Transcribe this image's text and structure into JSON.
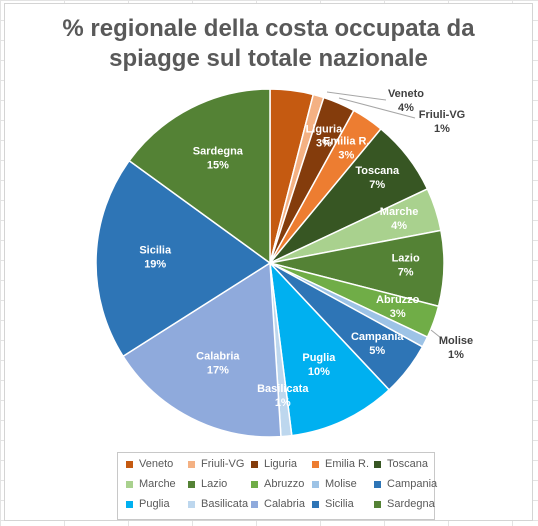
{
  "chart_data": {
    "type": "pie",
    "title_lines": [
      "% regionale della costa occupata da",
      "spiagge sul totale nazionale"
    ],
    "slices": [
      {
        "label": "Veneto",
        "value": 4,
        "pct_label": "4%",
        "color": "#c55a11"
      },
      {
        "label": "Friuli-VG",
        "value": 1,
        "pct_label": "1%",
        "color": "#f4b183"
      },
      {
        "label": "Liguria",
        "value": 3,
        "pct_label": "3%",
        "color": "#843c0c"
      },
      {
        "label": "Emilia R.",
        "value": 3,
        "pct_label": "3%",
        "color": "#ed7d31"
      },
      {
        "label": "Toscana",
        "value": 7,
        "pct_label": "7%",
        "color": "#375623"
      },
      {
        "label": "Marche",
        "value": 4,
        "pct_label": "4%",
        "color": "#a9d18e"
      },
      {
        "label": "Lazio",
        "value": 7,
        "pct_label": "7%",
        "color": "#548235"
      },
      {
        "label": "Abruzzo",
        "value": 3,
        "pct_label": "3%",
        "color": "#70ad47"
      },
      {
        "label": "Molise",
        "value": 1,
        "pct_label": "1%",
        "color": "#9dc3e6"
      },
      {
        "label": "Campania",
        "value": 5,
        "pct_label": "5%",
        "color": "#2e75b6"
      },
      {
        "label": "Puglia",
        "value": 10,
        "pct_label": "10%",
        "color": "#00b0f0"
      },
      {
        "label": "Basilicata",
        "value": 1,
        "pct_label": "1%",
        "color": "#bdd7ee"
      },
      {
        "label": "Calabria",
        "value": 17,
        "pct_label": "17%",
        "color": "#8faadc"
      },
      {
        "label": "Sicilia",
        "value": 19,
        "pct_label": "19%",
        "color": "#2e75b6"
      },
      {
        "label": "Sardegna",
        "value": 15,
        "pct_label": "15%",
        "color": "#548235"
      }
    ],
    "legend_position": "bottom"
  }
}
